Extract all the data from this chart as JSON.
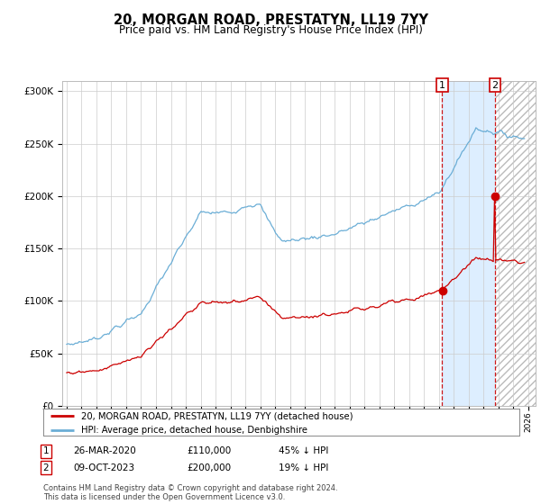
{
  "title": "20, MORGAN ROAD, PRESTATYN, LL19 7YY",
  "subtitle": "Price paid vs. HM Land Registry's House Price Index (HPI)",
  "hpi_color": "#6baed6",
  "price_color": "#cc0000",
  "bg_color": "#ffffff",
  "grid_color": "#cccccc",
  "sale1_date_num": 2020.23,
  "sale1_price": 110000,
  "sale2_date_num": 2023.77,
  "sale2_price": 200000,
  "legend_entry1": "20, MORGAN ROAD, PRESTATYN, LL19 7YY (detached house)",
  "legend_entry2": "HPI: Average price, detached house, Denbighshire",
  "table_row1": [
    "1",
    "26-MAR-2020",
    "£110,000",
    "45% ↓ HPI"
  ],
  "table_row2": [
    "2",
    "09-OCT-2023",
    "£200,000",
    "19% ↓ HPI"
  ],
  "footnote": "Contains HM Land Registry data © Crown copyright and database right 2024.\nThis data is licensed under the Open Government Licence v3.0.",
  "ylim": [
    0,
    310000
  ],
  "yticks": [
    0,
    50000,
    100000,
    150000,
    200000,
    250000,
    300000
  ],
  "ytick_labels": [
    "£0",
    "£50K",
    "£100K",
    "£150K",
    "£200K",
    "£250K",
    "£300K"
  ],
  "xstart": 1995,
  "xend": 2026,
  "shade_color": "#ddeeff"
}
